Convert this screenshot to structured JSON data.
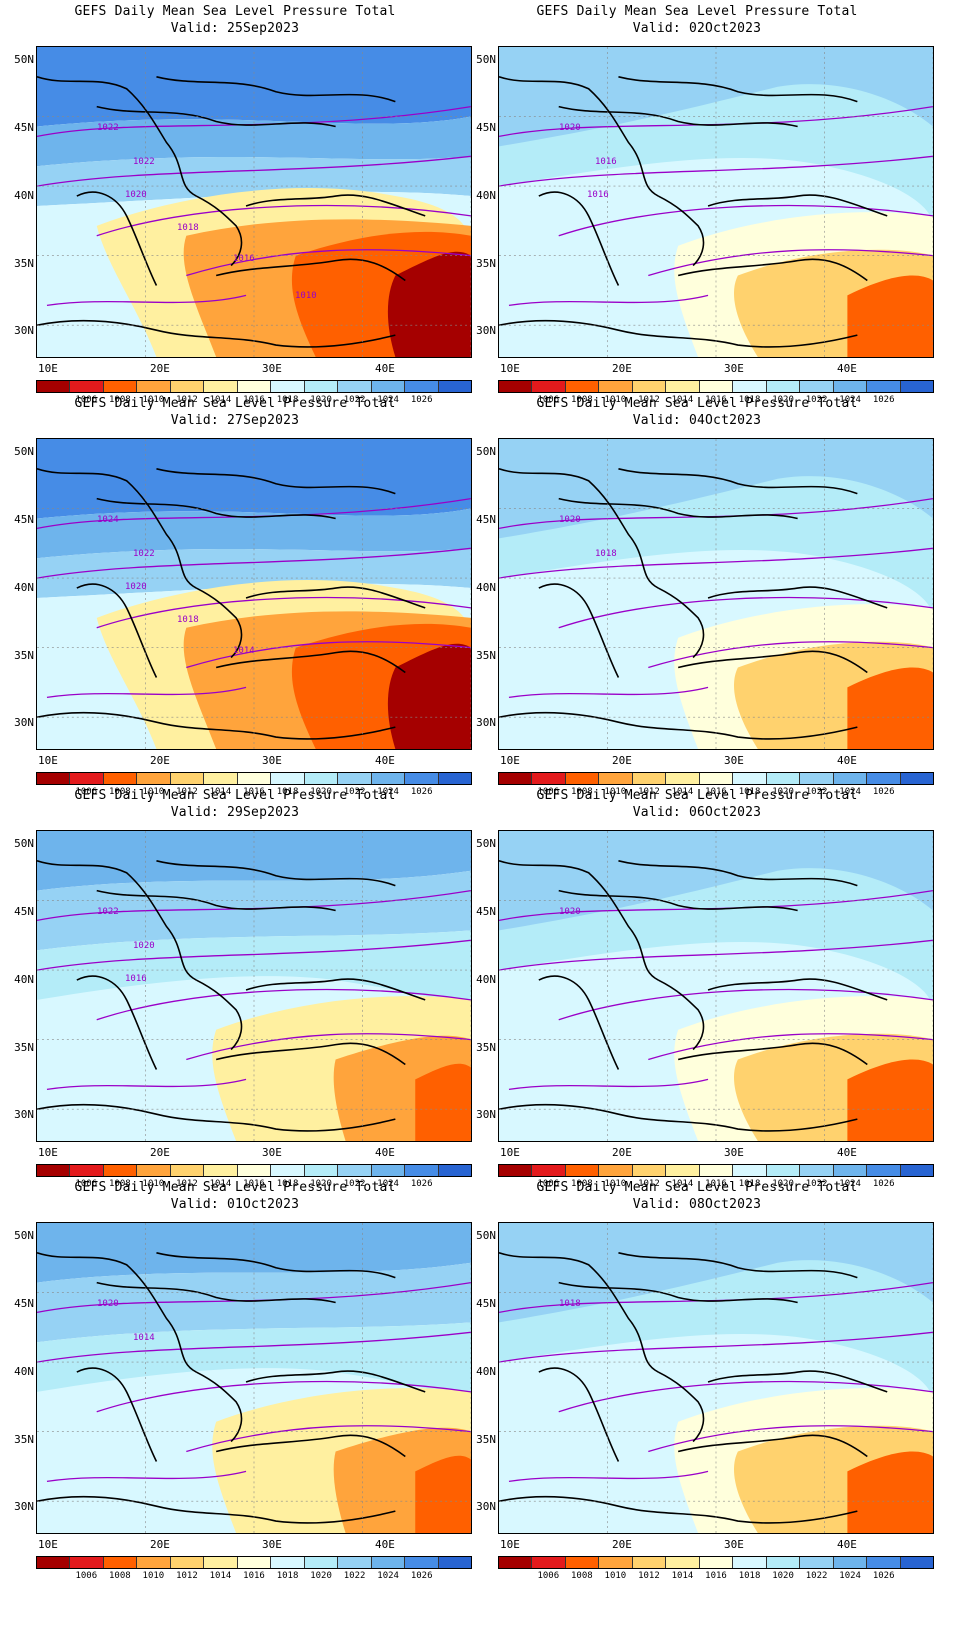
{
  "colors": {
    "palette": [
      "#a50000",
      "#e31a1c",
      "#ff6000",
      "#ffa43c",
      "#ffd26e",
      "#fff0a0",
      "#ffffdc",
      "#d8f8ff",
      "#b4ecf8",
      "#96d2f4",
      "#6eb4ec",
      "#468ce6",
      "#2864d2"
    ],
    "contour": "#9a00c8",
    "coast": "#000000"
  },
  "colorbar": {
    "levels": [
      "1006",
      "1008",
      "1010",
      "1012",
      "1014",
      "1016",
      "1018",
      "1020",
      "1022",
      "1024",
      "1026"
    ]
  },
  "axes": {
    "lat": [
      "50N",
      "45N",
      "40N",
      "35N",
      "30N"
    ],
    "lon": [
      "10E",
      "20E",
      "30E",
      "40E"
    ]
  },
  "panels": [
    {
      "title": "GEFS Daily Mean Sea Level Pressure Total",
      "valid": "Valid: 25Sep2023",
      "contour_labels": [
        "1022",
        "1022",
        "1020",
        "1018",
        "1016",
        "1010"
      ],
      "scheme": 0
    },
    {
      "title": "GEFS Daily Mean Sea Level Pressure Total",
      "valid": "Valid: 02Oct2023",
      "contour_labels": [
        "1020",
        "1016",
        "1016"
      ],
      "scheme": 1
    },
    {
      "title": "GEFS Daily Mean Sea Level Pressure Total",
      "valid": "Valid: 27Sep2023",
      "contour_labels": [
        "1024",
        "1022",
        "1020",
        "1018",
        "1014"
      ],
      "scheme": 0
    },
    {
      "title": "GEFS Daily Mean Sea Level Pressure Total",
      "valid": "Valid: 04Oct2023",
      "contour_labels": [
        "1020",
        "1018"
      ],
      "scheme": 1
    },
    {
      "title": "GEFS Daily Mean Sea Level Pressure Total",
      "valid": "Valid: 29Sep2023",
      "contour_labels": [
        "1022",
        "1020",
        "1016"
      ],
      "scheme": 2
    },
    {
      "title": "GEFS Daily Mean Sea Level Pressure Total",
      "valid": "Valid: 06Oct2023",
      "contour_labels": [
        "1020"
      ],
      "scheme": 1
    },
    {
      "title": "GEFS Daily Mean Sea Level Pressure Total",
      "valid": "Valid: 01Oct2023",
      "contour_labels": [
        "1020",
        "1014"
      ],
      "scheme": 2
    },
    {
      "title": "GEFS Daily Mean Sea Level Pressure Total",
      "valid": "Valid: 08Oct2023",
      "contour_labels": [
        "1018"
      ],
      "scheme": 1
    }
  ]
}
